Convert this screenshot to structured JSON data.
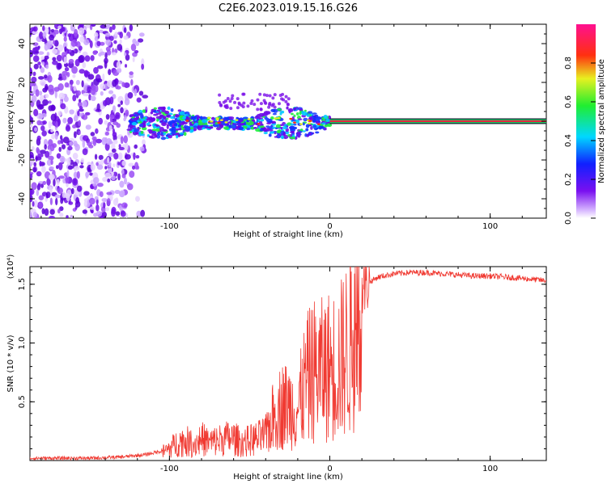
{
  "title": "C2E6.2023.019.15.16.G26",
  "colors": {
    "line": "#f03a32",
    "axis": "#000000",
    "spectrum_low": "#6a00e8",
    "spectrum_mid": "#2ee84a",
    "spectrum_high": "#e0203a"
  },
  "chart_data": [
    {
      "type": "heatmap",
      "title": "C2E6.2023.019.15.16.G26",
      "xlabel": "Height of straight line (km)",
      "ylabel": "Frequency (Hz)",
      "xlim": [
        -187,
        135
      ],
      "ylim": [
        -50,
        50
      ],
      "x_ticks": [
        -100,
        0,
        100
      ],
      "y_ticks": [
        -40,
        -20,
        0,
        20,
        40
      ],
      "colorbar": {
        "label": "Normalized spectral amplitude",
        "range": [
          0,
          1
        ],
        "ticks": [
          "0.0",
          "0.2",
          "0.4",
          "0.6",
          "0.8"
        ],
        "colormap": "rainbow (white-purple-blue-cyan-green-yellow-red-magenta)"
      },
      "features": {
        "noise_region_km": [
          -187,
          -120
        ],
        "signal_band_km": [
          -125,
          0
        ],
        "signal_center_hz": 0,
        "carrier_line_km": [
          0,
          135
        ]
      }
    },
    {
      "type": "line",
      "xlabel": "Height of straight line (km)",
      "ylabel": "SNR (10 * v/v)",
      "y_multiplier": "(x10⁴)",
      "xlim": [
        -187,
        135
      ],
      "ylim": [
        0,
        1.65
      ],
      "x_ticks": [
        -100,
        0,
        100
      ],
      "y_ticks": [
        "0.5",
        "1.0",
        "1.5"
      ],
      "series": [
        {
          "x": [
            -187,
            -170,
            -150,
            -130,
            -115,
            -105,
            -100,
            -95,
            -90,
            -85,
            -80,
            -75,
            -70,
            -65,
            -60,
            -55,
            -50,
            -45,
            -40,
            -35,
            -30,
            -25,
            -20,
            -15,
            -10,
            -5,
            0,
            5,
            10,
            15,
            20,
            25,
            30,
            40,
            50,
            60,
            70,
            80,
            90,
            100,
            110,
            120,
            135
          ],
          "y": [
            0.02,
            0.02,
            0.02,
            0.03,
            0.05,
            0.08,
            0.12,
            0.18,
            0.2,
            0.16,
            0.22,
            0.18,
            0.2,
            0.22,
            0.22,
            0.18,
            0.2,
            0.22,
            0.25,
            0.45,
            0.55,
            0.55,
            0.5,
            0.8,
            0.9,
            0.9,
            0.95,
            0.95,
            1.1,
            1.3,
            1.45,
            1.52,
            1.56,
            1.59,
            1.6,
            1.6,
            1.59,
            1.58,
            1.57,
            1.57,
            1.56,
            1.55,
            1.53
          ]
        }
      ]
    }
  ]
}
